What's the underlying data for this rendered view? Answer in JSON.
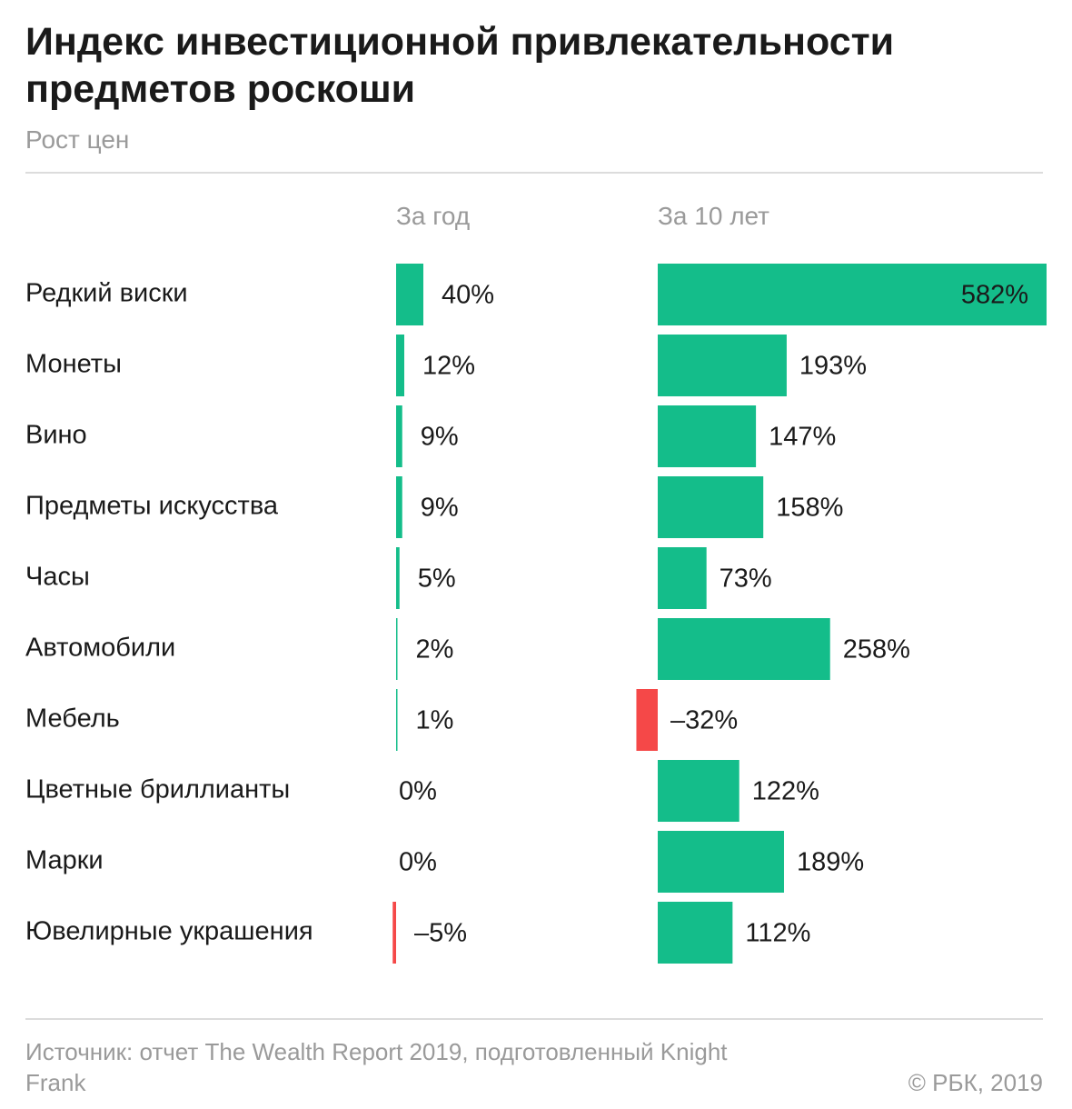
{
  "header": {
    "title": "Индекс инвестиционной привлекательности предметов роскоши",
    "subtitle": "Рост цен"
  },
  "footer": {
    "source": "Источник: отчет The Wealth Report 2019, подготовленный Knight Frank",
    "copyright": "© РБК, 2019"
  },
  "colors": {
    "positive": "#14bd8a",
    "negative": "#f54848"
  },
  "chart_data": {
    "type": "bar",
    "orientation": "horizontal",
    "title": "Индекс инвестиционной привлекательности предметов роскоши",
    "subtitle": "Рост цен",
    "unit": "%",
    "categories": [
      "Редкий виски",
      "Монеты",
      "Вино",
      "Предметы искусства",
      "Часы",
      "Автомобили",
      "Мебель",
      "Цветные бриллианты",
      "Марки",
      "Ювелирные украшения"
    ],
    "series": [
      {
        "name": "За год",
        "values": [
          40,
          12,
          9,
          9,
          5,
          2,
          1,
          0,
          0,
          -5
        ],
        "labels": [
          "40%",
          "12%",
          "9%",
          "9%",
          "5%",
          "2%",
          "1%",
          "0%",
          "0%",
          "–5%"
        ]
      },
      {
        "name": "За 10 лет",
        "values": [
          582,
          193,
          147,
          158,
          73,
          258,
          -32,
          122,
          189,
          112
        ],
        "labels": [
          "582%",
          "193%",
          "147%",
          "158%",
          "73%",
          "258%",
          "–32%",
          "122%",
          "189%",
          "112%"
        ]
      }
    ],
    "grid": false,
    "legend": "column headers"
  }
}
